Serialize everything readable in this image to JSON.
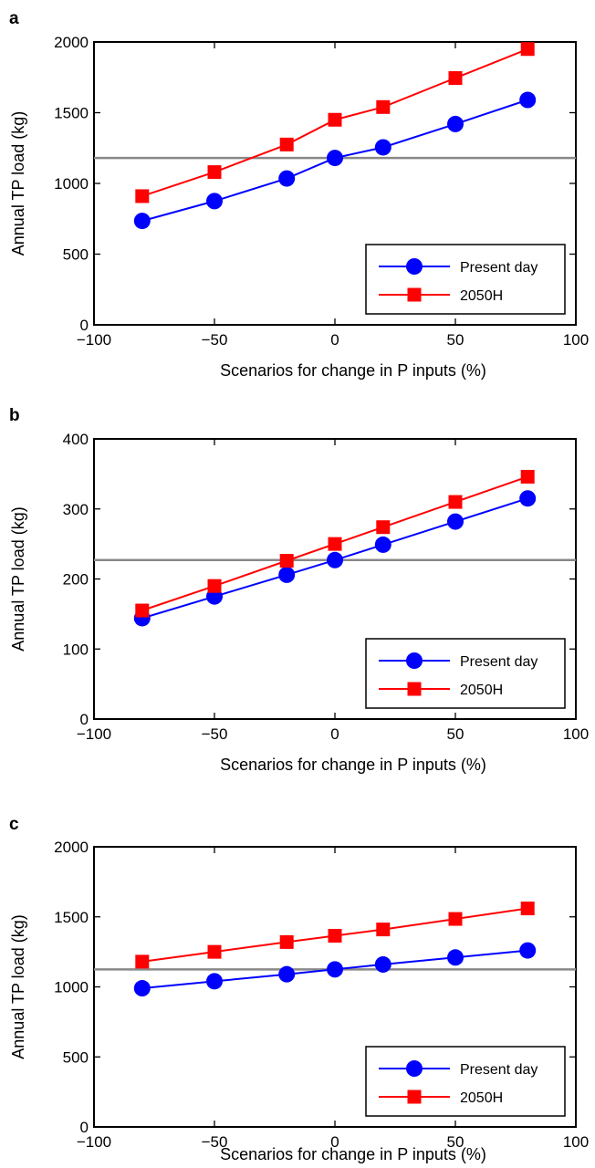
{
  "chart_data": [
    {
      "type": "line",
      "panel_label": "a",
      "xlabel": "Scenarios for change in P inputs (%)",
      "ylabel": "Annual TP load (kg)",
      "xlim": [
        -100,
        100
      ],
      "ylim": [
        0,
        2000
      ],
      "xticks": [
        -100,
        -50,
        0,
        50,
        100
      ],
      "yticks": [
        0,
        500,
        1000,
        1500,
        2000
      ],
      "x": [
        -80,
        -50,
        -20,
        0,
        20,
        50,
        80
      ],
      "series": [
        {
          "name": "Present day",
          "color": "#0000ff",
          "marker": "circle",
          "values": [
            735,
            875,
            1035,
            1180,
            1255,
            1420,
            1590
          ]
        },
        {
          "name": "2050H",
          "color": "#ff0000",
          "marker": "square",
          "values": [
            910,
            1080,
            1275,
            1450,
            1540,
            1745,
            1950
          ]
        }
      ],
      "reference_line": {
        "y": 1180,
        "color": "#888888"
      },
      "legend": "lower-right",
      "grid": false
    },
    {
      "type": "line",
      "panel_label": "b",
      "xlabel": "Scenarios for change in P inputs (%)",
      "ylabel": "Annual TP load (kg)",
      "xlim": [
        -100,
        100
      ],
      "ylim": [
        0,
        400
      ],
      "xticks": [
        -100,
        -50,
        0,
        50,
        100
      ],
      "yticks": [
        0,
        100,
        200,
        300,
        400
      ],
      "x": [
        -80,
        -50,
        -20,
        0,
        20,
        50,
        80
      ],
      "series": [
        {
          "name": "Present day",
          "color": "#0000ff",
          "marker": "circle",
          "values": [
            144,
            175,
            206,
            227,
            249,
            282,
            315
          ]
        },
        {
          "name": "2050H",
          "color": "#ff0000",
          "marker": "square",
          "values": [
            155,
            190,
            226,
            250,
            274,
            310,
            346
          ]
        }
      ],
      "reference_line": {
        "y": 227,
        "color": "#888888"
      },
      "legend": "lower-right",
      "grid": false
    },
    {
      "type": "line",
      "panel_label": "c",
      "xlabel": "Scenarios for change in P inputs (%)",
      "ylabel": "Annual TP load (kg)",
      "xlim": [
        -100,
        100
      ],
      "ylim": [
        0,
        2000
      ],
      "xticks": [
        -100,
        -50,
        0,
        50,
        100
      ],
      "yticks": [
        0,
        500,
        1000,
        1500,
        2000
      ],
      "x": [
        -80,
        -50,
        -20,
        0,
        20,
        50,
        80
      ],
      "series": [
        {
          "name": "Present day",
          "color": "#0000ff",
          "marker": "circle",
          "values": [
            990,
            1040,
            1090,
            1125,
            1160,
            1210,
            1260
          ]
        },
        {
          "name": "2050H",
          "color": "#ff0000",
          "marker": "square",
          "values": [
            1180,
            1250,
            1320,
            1365,
            1410,
            1485,
            1560
          ]
        }
      ],
      "reference_line": {
        "y": 1125,
        "color": "#888888"
      },
      "legend": "lower-right",
      "grid": false
    }
  ]
}
